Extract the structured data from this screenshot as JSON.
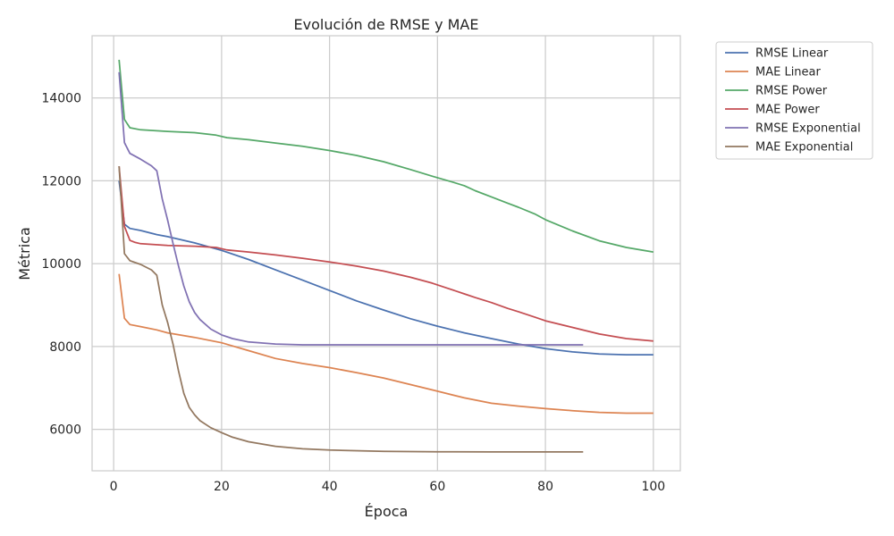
{
  "chart_data": {
    "type": "line",
    "title": "Evolución de RMSE y MAE",
    "xlabel": "Época",
    "ylabel": "Métrica",
    "xlim": [
      -4,
      105
    ],
    "ylim": [
      5000,
      15500
    ],
    "xticks": [
      0,
      20,
      40,
      60,
      80,
      100
    ],
    "yticks": [
      6000,
      8000,
      10000,
      12000,
      14000
    ],
    "grid": true,
    "legend_position": "outside-top-right",
    "series": [
      {
        "name": "RMSE Linear",
        "color": "#4c72b0",
        "x": [
          1,
          2,
          3,
          5,
          8,
          10,
          15,
          20,
          25,
          30,
          35,
          40,
          45,
          50,
          55,
          60,
          65,
          70,
          75,
          80,
          85,
          90,
          95,
          100
        ],
        "y": [
          12000,
          10950,
          10850,
          10800,
          10700,
          10650,
          10500,
          10320,
          10100,
          9850,
          9600,
          9350,
          9100,
          8880,
          8670,
          8490,
          8330,
          8190,
          8060,
          7950,
          7870,
          7820,
          7800,
          7800
        ]
      },
      {
        "name": "MAE Linear",
        "color": "#dd8452",
        "x": [
          1,
          2,
          3,
          5,
          8,
          10,
          15,
          20,
          25,
          30,
          35,
          40,
          45,
          50,
          55,
          60,
          65,
          70,
          75,
          80,
          85,
          90,
          95,
          100
        ],
        "y": [
          9750,
          8680,
          8530,
          8480,
          8400,
          8330,
          8220,
          8090,
          7900,
          7710,
          7590,
          7490,
          7370,
          7240,
          7080,
          6920,
          6760,
          6630,
          6560,
          6500,
          6450,
          6410,
          6390,
          6390
        ]
      },
      {
        "name": "RMSE Power",
        "color": "#55a868",
        "x": [
          1,
          2,
          3,
          5,
          10,
          15,
          19,
          21,
          25,
          30,
          35,
          40,
          45,
          50,
          55,
          59,
          63,
          65,
          67,
          70,
          73,
          75,
          78,
          80,
          85,
          90,
          95,
          100
        ],
        "y": [
          14920,
          13480,
          13280,
          13230,
          13190,
          13160,
          13100,
          13040,
          12990,
          12910,
          12830,
          12730,
          12610,
          12460,
          12270,
          12110,
          11960,
          11880,
          11760,
          11610,
          11460,
          11360,
          11200,
          11060,
          10790,
          10550,
          10390,
          10280
        ]
      },
      {
        "name": "MAE Power",
        "color": "#c44e52",
        "x": [
          1,
          2,
          3,
          4,
          5,
          10,
          15,
          19,
          21,
          25,
          30,
          35,
          40,
          45,
          50,
          55,
          59,
          62,
          65,
          67,
          70,
          73,
          75,
          78,
          80,
          85,
          90,
          95,
          100
        ],
        "y": [
          12350,
          10900,
          10560,
          10510,
          10480,
          10440,
          10420,
          10390,
          10330,
          10280,
          10210,
          10130,
          10040,
          9940,
          9820,
          9670,
          9530,
          9400,
          9270,
          9180,
          9060,
          8920,
          8840,
          8710,
          8620,
          8460,
          8300,
          8190,
          8130
        ]
      },
      {
        "name": "RMSE Exponential",
        "color": "#8172b3",
        "x": [
          1,
          2,
          3,
          5,
          7,
          8,
          9,
          10,
          11,
          12,
          13,
          14,
          15,
          16,
          18,
          20,
          22,
          25,
          30,
          35,
          40,
          50,
          60,
          70,
          80,
          87
        ],
        "y": [
          14620,
          12920,
          12660,
          12520,
          12360,
          12240,
          11560,
          11050,
          10480,
          9950,
          9460,
          9080,
          8820,
          8650,
          8420,
          8280,
          8190,
          8110,
          8060,
          8040,
          8040,
          8040,
          8040,
          8040,
          8040,
          8040
        ]
      },
      {
        "name": "MAE Exponential",
        "color": "#937860",
        "x": [
          1,
          2,
          3,
          5,
          7,
          8,
          9,
          10,
          11,
          12,
          13,
          14,
          15,
          16,
          18,
          20,
          22,
          25,
          30,
          35,
          40,
          50,
          60,
          70,
          80,
          87
        ],
        "y": [
          12350,
          10240,
          10070,
          9980,
          9850,
          9720,
          9000,
          8580,
          8050,
          7420,
          6870,
          6530,
          6350,
          6210,
          6040,
          5920,
          5810,
          5700,
          5590,
          5530,
          5500,
          5470,
          5460,
          5455,
          5455,
          5455
        ]
      }
    ]
  }
}
